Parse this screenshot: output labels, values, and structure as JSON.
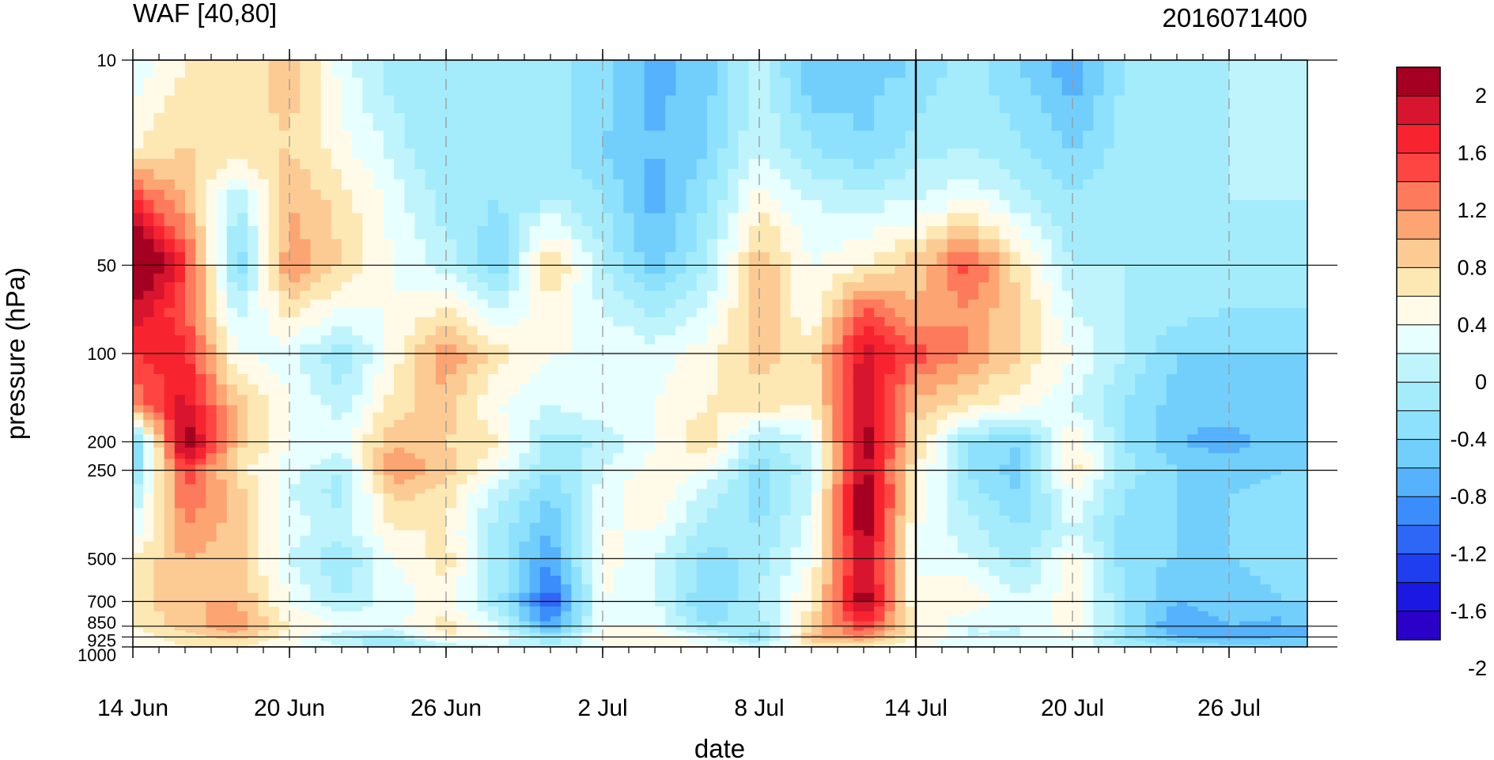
{
  "chart_data": {
    "type": "heatmap",
    "title_left": "WAF [40,80]",
    "title_right": "2016071400",
    "xlabel": "date",
    "ylabel": "pressure (hPa)",
    "x_tick_labels": [
      "14 Jun",
      "20 Jun",
      "26 Jun",
      "2 Jul",
      "8 Jul",
      "14 Jul",
      "20 Jul",
      "26 Jul"
    ],
    "x_tick_dates": [
      "2016-06-14",
      "2016-06-20",
      "2016-06-26",
      "2016-07-02",
      "2016-07-08",
      "2016-07-14",
      "2016-07-20",
      "2016-07-26"
    ],
    "x_range": [
      "2016-06-14",
      "2016-07-29"
    ],
    "y_scale": "log",
    "y_tick_labels": [
      "10",
      "50",
      "100",
      "200",
      "250",
      "500",
      "700",
      "850",
      "925",
      "1000"
    ],
    "y_range_hPa": [
      1000,
      10
    ],
    "marked_date": "2016-07-14",
    "colorbar": {
      "tick_labels": [
        "2",
        "1.6",
        "1.2",
        "0.8",
        "0.4",
        "0",
        "-0.4",
        "-0.8",
        "-1.2",
        "-1.6",
        "-2"
      ],
      "colors": [
        "#a50021",
        "#d8152f",
        "#f72430",
        "#fe4542",
        "#fe7a5c",
        "#fca572",
        "#fccb94",
        "#fde8b4",
        "#fffbe8",
        "#e8ffff",
        "#c0f4fc",
        "#a4ecfc",
        "#8ee1fc",
        "#72cffc",
        "#56b2fc",
        "#3a8dfa",
        "#2e66f6",
        "#1e3ef0",
        "#1a18e2",
        "#2b00c8"
      ]
    },
    "levels_hPa": [
      10,
      20,
      30,
      50,
      70,
      100,
      150,
      200,
      250,
      300,
      400,
      500,
      700,
      850,
      925,
      1000
    ],
    "dates": [
      "2016-06-14",
      "2016-06-16",
      "2016-06-18",
      "2016-06-20",
      "2016-06-22",
      "2016-06-24",
      "2016-06-26",
      "2016-06-28",
      "2016-06-30",
      "2016-07-02",
      "2016-07-04",
      "2016-07-06",
      "2016-07-08",
      "2016-07-10",
      "2016-07-12",
      "2016-07-14",
      "2016-07-16",
      "2016-07-18",
      "2016-07-20",
      "2016-07-22",
      "2016-07-24",
      "2016-07-26",
      "2016-07-28"
    ],
    "values": [
      [
        -0.2,
        0.2,
        0.3,
        0.5,
        -0.1,
        -0.5,
        -0.6,
        -0.5,
        -0.5,
        -0.7,
        -1.1,
        -0.9,
        -0.3,
        -1.0,
        -0.9,
        -0.8,
        -0.5,
        -0.8,
        -1.2,
        -0.6,
        -0.5,
        -0.4,
        -0.3
      ],
      [
        0.2,
        0.4,
        0.3,
        0.4,
        0.1,
        -0.3,
        -0.6,
        -0.6,
        -0.5,
        -0.8,
        -1.0,
        -0.8,
        -0.2,
        -0.6,
        -0.8,
        -0.5,
        -0.4,
        -0.6,
        -0.8,
        -0.5,
        -0.5,
        -0.4,
        -0.3
      ],
      [
        1.2,
        0.6,
        -0.4,
        0.6,
        0.3,
        -0.1,
        -0.5,
        -0.6,
        -0.4,
        -0.6,
        -1.1,
        -0.6,
        0.1,
        -0.2,
        -0.3,
        -0.2,
        0.0,
        -0.3,
        -0.6,
        -0.4,
        -0.4,
        -0.4,
        -0.4
      ],
      [
        2.2,
        1.2,
        -0.8,
        0.8,
        0.4,
        0.0,
        -0.3,
        -0.8,
        0.5,
        -0.4,
        -0.9,
        -0.4,
        0.6,
        0.0,
        0.2,
        0.5,
        1.1,
        0.3,
        -0.4,
        -0.4,
        -0.4,
        -0.4,
        -0.4
      ],
      [
        1.6,
        1.0,
        -0.3,
        0.3,
        0.0,
        0.0,
        0.2,
        -0.2,
        0.1,
        -0.2,
        -0.5,
        -0.2,
        0.6,
        0.0,
        1.0,
        0.6,
        0.8,
        0.4,
        -0.2,
        -0.4,
        -0.5,
        -0.6,
        -0.6
      ],
      [
        1.2,
        1.3,
        0.0,
        -0.1,
        -0.6,
        0.1,
        0.8,
        0.3,
        0.0,
        0.0,
        -0.1,
        0.1,
        0.5,
        0.3,
        1.5,
        1.1,
        0.8,
        0.4,
        0.0,
        -0.4,
        -0.8,
        -0.8,
        -0.8
      ],
      [
        0.8,
        1.5,
        0.5,
        0.0,
        -0.3,
        0.3,
        0.5,
        0.0,
        -0.2,
        0.0,
        0.0,
        0.2,
        0.3,
        0.2,
        1.6,
        0.5,
        0.3,
        0.1,
        -0.2,
        -0.6,
        -0.9,
        -0.9,
        -0.8
      ],
      [
        -1.0,
        1.9,
        0.5,
        0.0,
        -0.1,
        0.6,
        0.4,
        0.2,
        -0.5,
        -0.4,
        0.0,
        0.4,
        -0.5,
        -0.2,
        1.8,
        0.4,
        -0.6,
        -0.8,
        0.2,
        -0.6,
        -1.0,
        -1.1,
        -0.9
      ],
      [
        -0.8,
        1.2,
        0.3,
        -0.1,
        -0.4,
        0.8,
        0.5,
        0.0,
        -0.6,
        -0.2,
        0.1,
        0.0,
        -0.7,
        -0.3,
        1.7,
        0.2,
        -0.6,
        -0.9,
        0.3,
        -0.5,
        -0.8,
        -0.9,
        -0.8
      ],
      [
        -0.4,
        1.0,
        0.5,
        -0.2,
        -0.5,
        0.5,
        0.3,
        -0.3,
        -0.8,
        -0.1,
        0.2,
        -0.3,
        -0.7,
        -0.2,
        1.9,
        0.2,
        -0.5,
        -0.8,
        0.0,
        -0.6,
        -0.8,
        -0.8,
        -0.7
      ],
      [
        -0.2,
        0.8,
        0.5,
        -0.1,
        -0.3,
        0.2,
        0.2,
        -0.5,
        -1.0,
        0.0,
        0.0,
        -0.5,
        -0.6,
        -0.1,
        1.8,
        0.0,
        -0.3,
        -0.6,
        -0.2,
        -0.7,
        -0.8,
        -0.8,
        -0.8
      ],
      [
        0.2,
        0.6,
        0.5,
        -0.2,
        -0.6,
        0.0,
        0.3,
        -0.5,
        -1.2,
        0.1,
        -0.2,
        -0.7,
        -0.5,
        0.0,
        1.6,
        0.0,
        -0.2,
        -0.5,
        0.1,
        -0.7,
        -0.8,
        -0.8,
        -0.7
      ],
      [
        0.3,
        0.6,
        0.6,
        0.0,
        -0.4,
        -0.1,
        0.1,
        -0.5,
        -1.6,
        0.0,
        -0.2,
        -0.8,
        -0.4,
        0.2,
        1.8,
        0.0,
        0.2,
        -0.2,
        0.1,
        -0.6,
        -1.0,
        -0.9,
        -0.8
      ],
      [
        0.2,
        0.5,
        0.8,
        0.2,
        0.0,
        -0.1,
        0.3,
        -0.2,
        -1.2,
        0.0,
        0.0,
        -0.6,
        -0.5,
        0.4,
        1.2,
        0.2,
        -0.2,
        -0.2,
        0.1,
        -0.6,
        -1.2,
        -1.0,
        -1.1
      ],
      [
        0.1,
        0.3,
        0.5,
        0.1,
        -0.4,
        -0.5,
        0.2,
        0.0,
        -0.6,
        0.1,
        0.1,
        -0.1,
        -0.7,
        0.6,
        0.8,
        0.2,
        -0.2,
        -0.2,
        0.0,
        -0.6,
        -1.0,
        -1.1,
        -1.0
      ],
      [
        0.0,
        0.2,
        0.2,
        0.0,
        -0.2,
        -0.6,
        -0.4,
        -0.2,
        -0.4,
        0.0,
        0.1,
        0.0,
        -0.2,
        0.2,
        0.2,
        0.0,
        -0.1,
        -0.2,
        0.0,
        -0.4,
        -0.6,
        -0.7,
        -0.8
      ]
    ]
  }
}
